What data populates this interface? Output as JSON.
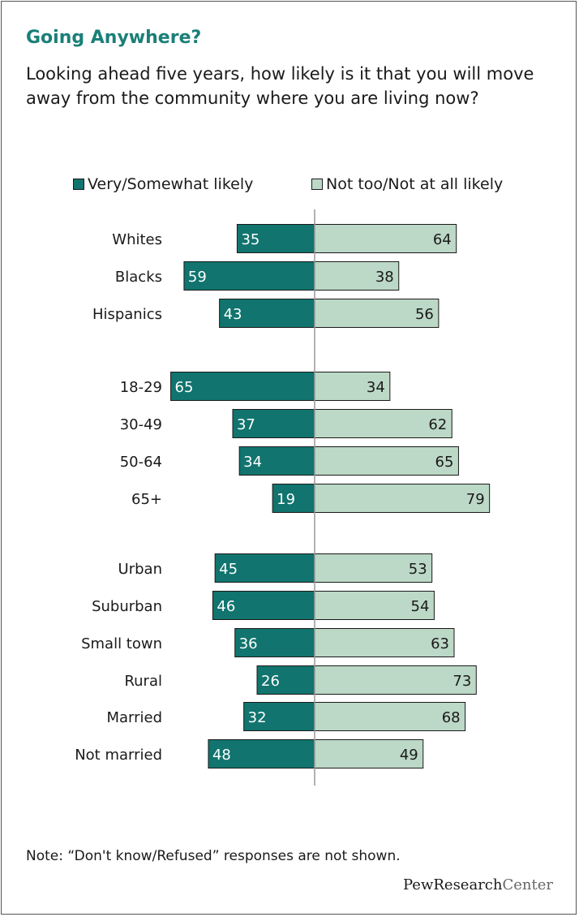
{
  "title": "Going Anywhere?",
  "subtitle": "Looking ahead five years, how likely is it that you will move away from the community where you are living now?",
  "note": "Note: “Don't know/Refused” responses are not shown.",
  "logo": {
    "part1": "PewResearch",
    "part2": "Center"
  },
  "colors": {
    "likely": "#11746e",
    "not_likely": "#bcd8c7"
  },
  "chart_data": {
    "type": "bar",
    "orientation": "horizontal-diverging",
    "legend": [
      "Very/Somewhat likely",
      "Not too/Not at all likely"
    ],
    "legend_position": "top",
    "categories": [
      "Whites",
      "Blacks",
      "Hispanics",
      "18-29",
      "30-49",
      "50-64",
      "65+",
      "Urban",
      "Suburban",
      "Small town",
      "Rural",
      "Married",
      "Not married"
    ],
    "groups": [
      [
        0,
        1,
        2
      ],
      [
        3,
        4,
        5,
        6
      ],
      [
        7,
        8,
        9,
        10
      ],
      [
        11,
        12
      ]
    ],
    "series": [
      {
        "name": "Very/Somewhat likely",
        "values": [
          35,
          59,
          43,
          65,
          37,
          34,
          19,
          45,
          46,
          36,
          26,
          32,
          48
        ]
      },
      {
        "name": "Not too/Not at all likely",
        "values": [
          64,
          38,
          56,
          34,
          62,
          65,
          79,
          53,
          54,
          63,
          73,
          68,
          49
        ]
      }
    ]
  }
}
